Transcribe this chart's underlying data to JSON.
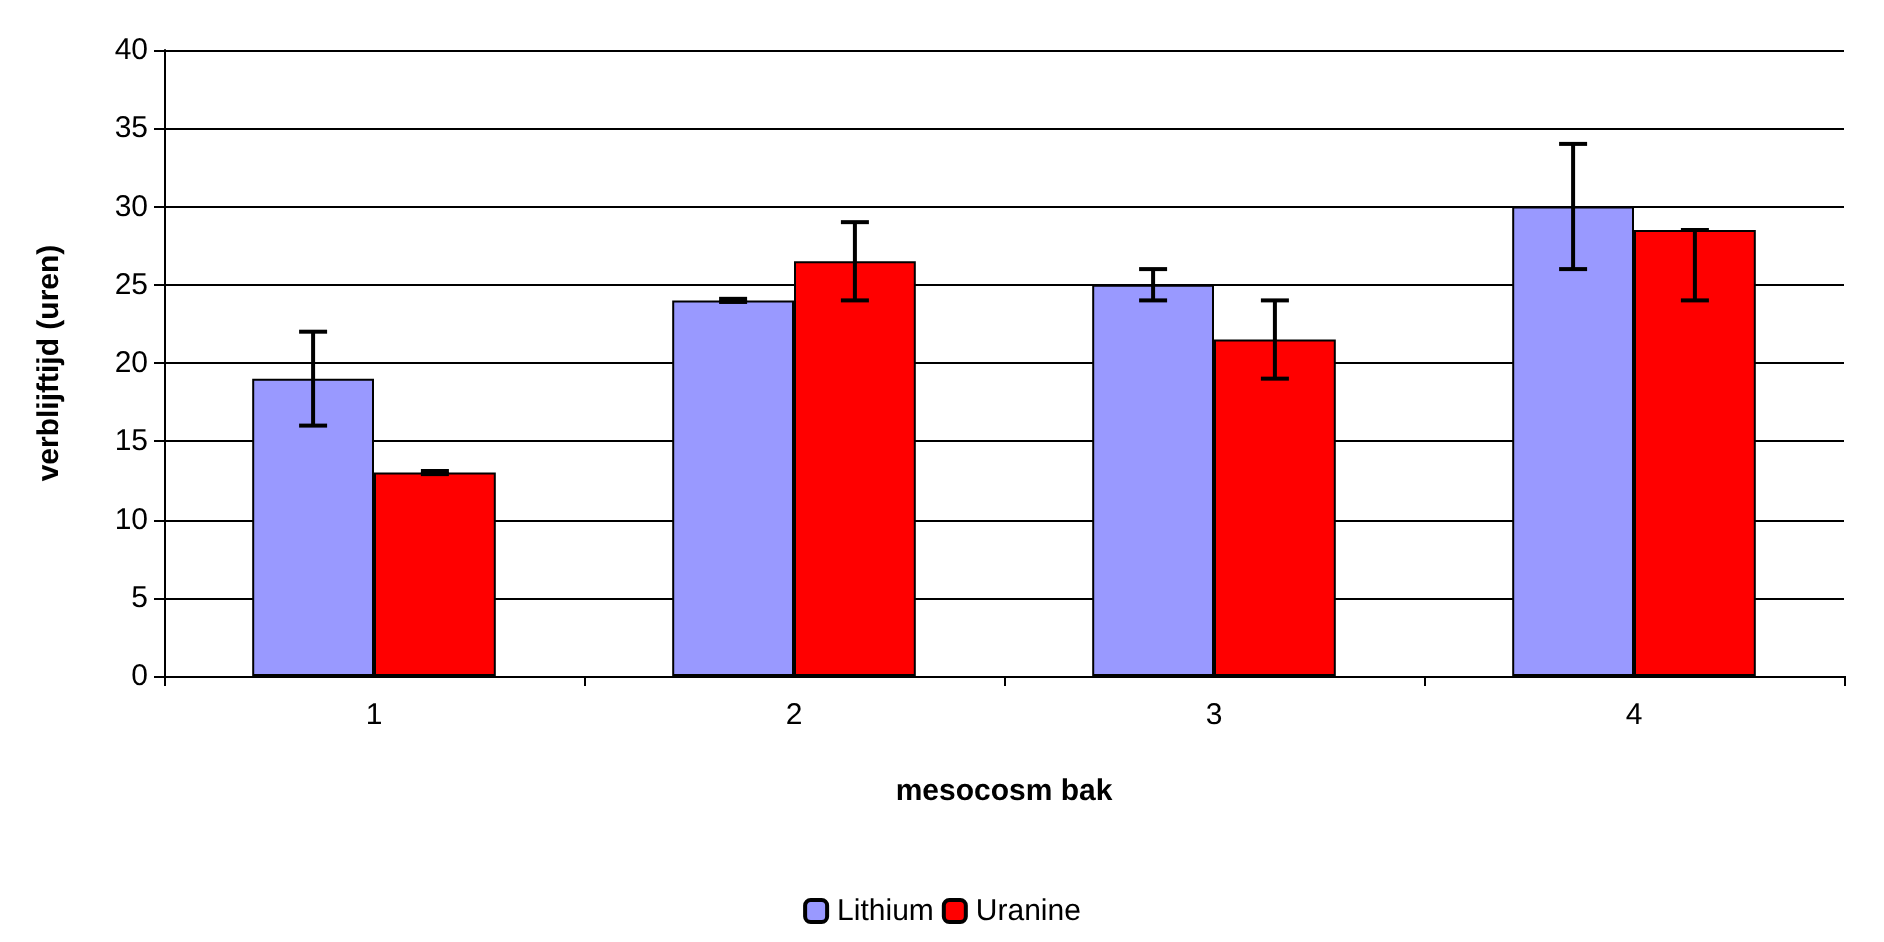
{
  "chart_data": {
    "type": "bar",
    "xlabel": "mesocosm bak",
    "ylabel": "verblijftijd (uren)",
    "categories": [
      "1",
      "2",
      "3",
      "4"
    ],
    "series": [
      {
        "name": "Lithium",
        "color": "#9999ff",
        "values": [
          19,
          24,
          25,
          30
        ],
        "errors": [
          [
            16,
            22
          ],
          [
            23.9,
            24.1
          ],
          [
            24,
            26
          ],
          [
            26,
            34
          ]
        ]
      },
      {
        "name": "Uranine",
        "color": "#ff0000",
        "values": [
          13,
          26.5,
          21.5,
          28.5
        ],
        "errors": [
          [
            12.9,
            13.1
          ],
          [
            24,
            29
          ],
          [
            19,
            24
          ],
          [
            24,
            28.5
          ]
        ]
      }
    ],
    "ylim": [
      0,
      40
    ],
    "yticks": [
      0,
      5,
      10,
      15,
      20,
      25,
      30,
      35,
      40
    ],
    "grid": "y",
    "legend": "bottom"
  }
}
